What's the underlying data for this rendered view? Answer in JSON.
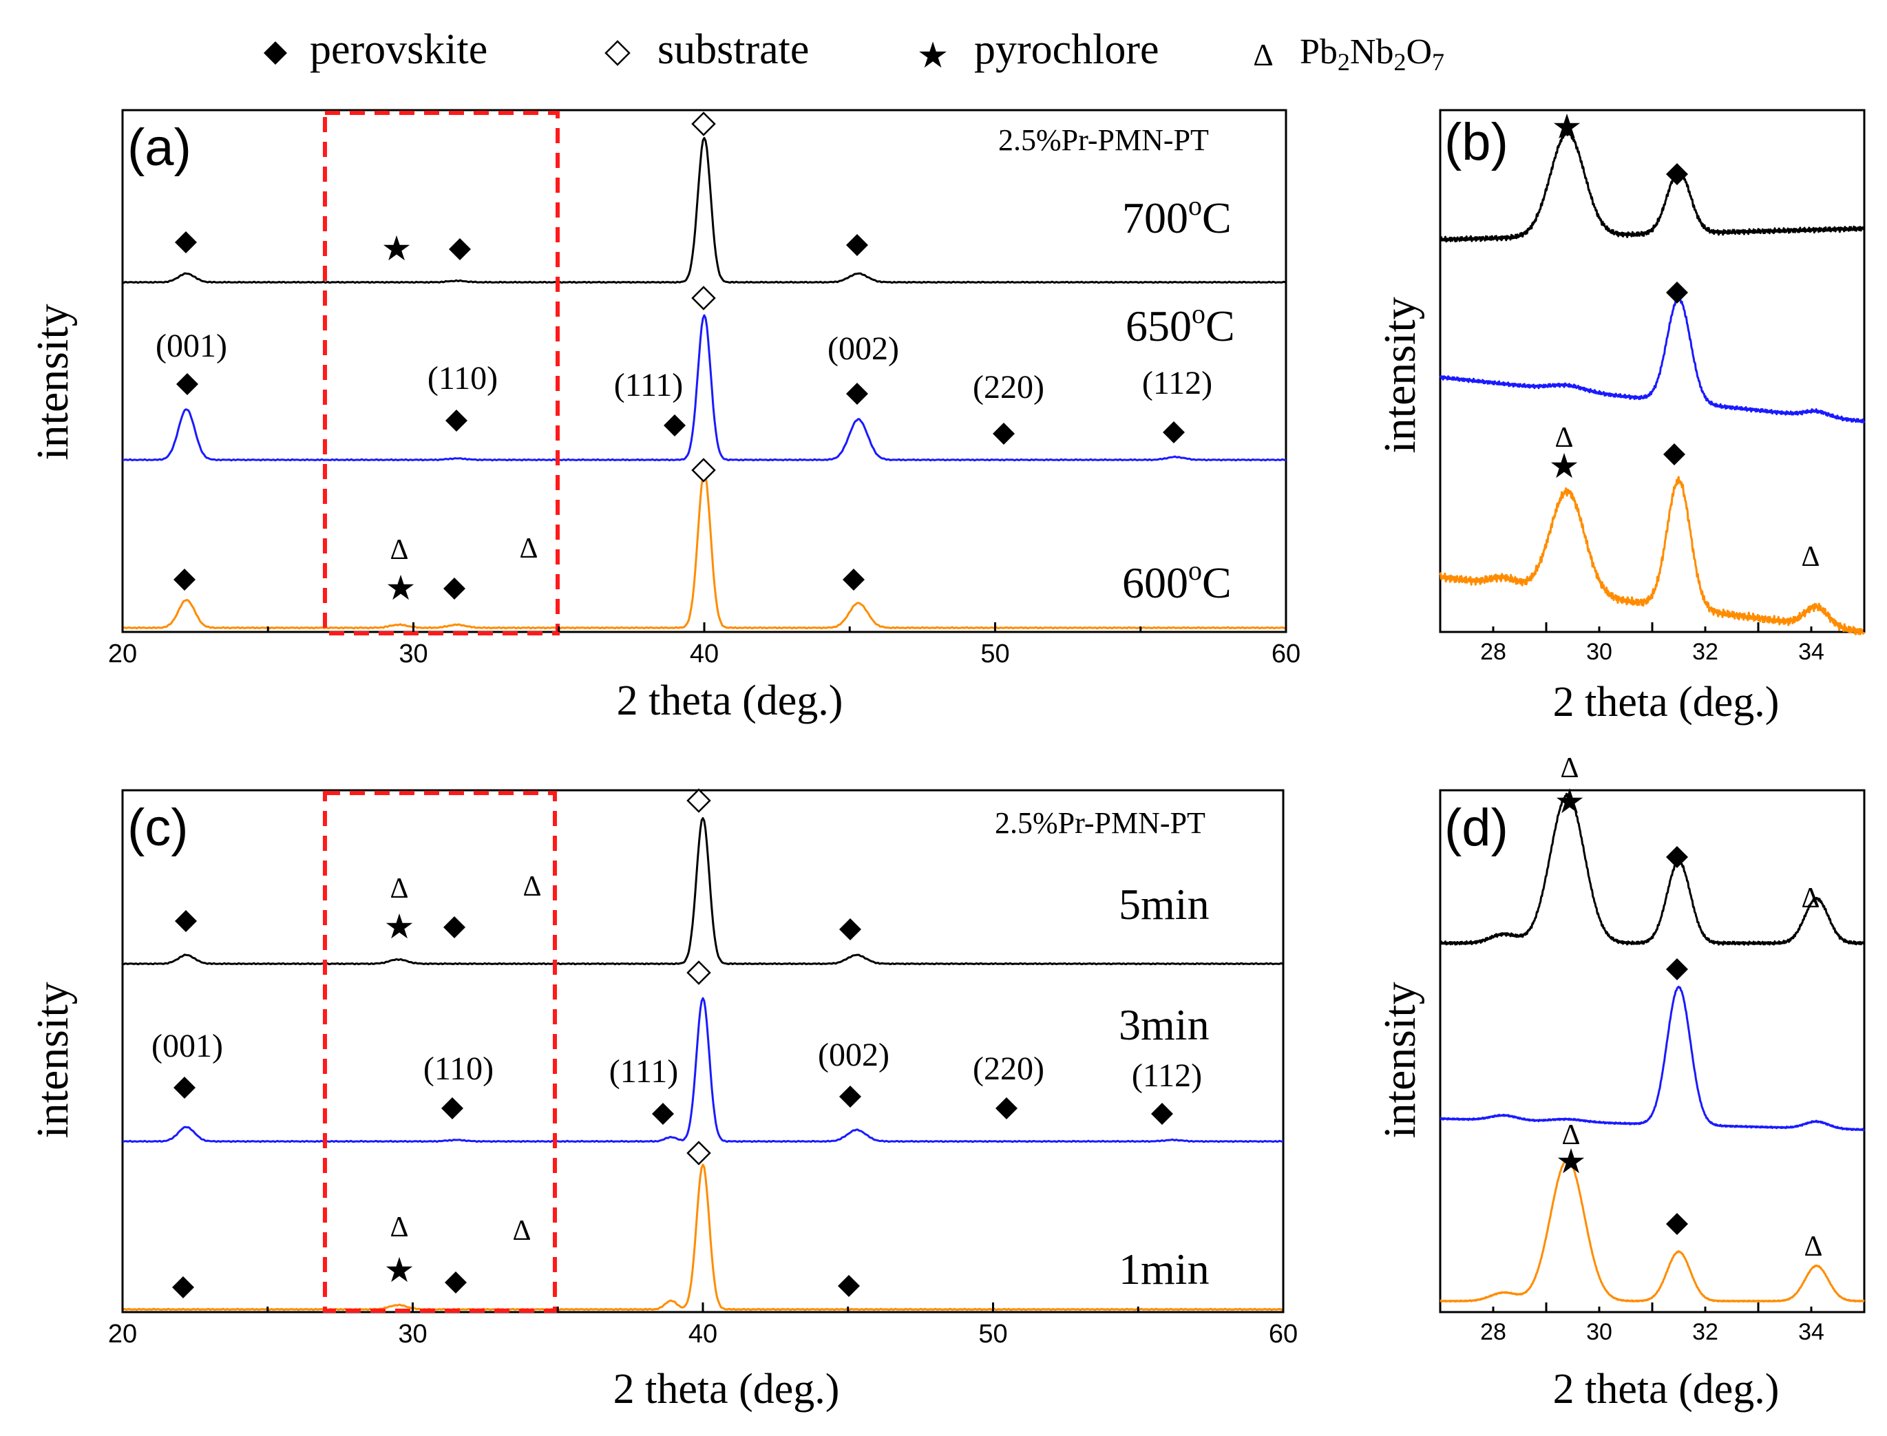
{
  "legend": [
    {
      "symbol": "diamond-filled",
      "label": "perovskite"
    },
    {
      "symbol": "diamond-open",
      "label": "substrate"
    },
    {
      "symbol": "star",
      "label": "pyrochlore"
    },
    {
      "symbol": "triangle-open",
      "label": "Pb2Nb2O7"
    }
  ],
  "colors": {
    "series_top": "#000000",
    "series_mid": "#1a1aff",
    "series_bottom": "#ff8c00",
    "box": "#ff1a1a"
  },
  "chart_data": [
    {
      "id": "a",
      "type": "line",
      "panel_label": "(a)",
      "sample": "2.5%Pr-PMN-PT",
      "xlabel": "2 theta (deg.)",
      "ylabel": "intensity",
      "xlim": [
        20,
        60
      ],
      "xticks": [
        "20",
        "30",
        "40",
        "50",
        "60"
      ],
      "highlight_box_x": [
        27,
        35
      ],
      "peaks": {
        "perovskite": [
          22.2,
          31.5,
          45.3,
          50.5,
          56.2
        ],
        "substrate": 40.0,
        "si111": 38.9
      },
      "hkl": [
        "(001)",
        "(110)",
        "(111)",
        "(002)",
        "(220)",
        "(112)"
      ],
      "series": [
        {
          "name": "700°C",
          "temp": "700",
          "unit": "oC",
          "peak_heights": {
            "001": 0.06,
            "110": 0.01,
            "sub": 1.0,
            "002": 0.06
          }
        },
        {
          "name": "650°C",
          "temp": "650",
          "unit": "oC",
          "peak_heights": {
            "001": 0.35,
            "110": 0.01,
            "111": 0.0,
            "sub": 1.0,
            "002": 0.28,
            "112": 0.02
          }
        },
        {
          "name": "600°C",
          "temp": "600",
          "unit": "oC",
          "peak_heights": {
            "001": 0.18,
            "pyro": 0.02,
            "110": 0.02,
            "sub": 1.0,
            "002": 0.16
          }
        }
      ]
    },
    {
      "id": "b",
      "type": "line",
      "panel_label": "(b)",
      "xlabel": "2 theta (deg.)",
      "ylabel": "intensity",
      "xlim": [
        27,
        35
      ],
      "xticks": [
        "28",
        "30",
        "32",
        "34"
      ],
      "series": [
        {
          "name": "700°C",
          "pyrochlore_29_4": 0.75,
          "perovskite_31_5": 0.45
        },
        {
          "name": "650°C",
          "pyrochlore_29_4": 0.05,
          "perovskite_31_5": 1.0,
          "pb2nb2o7_34_0": 0.05
        },
        {
          "name": "600°C",
          "pyrochlore_29_4": 0.8,
          "perovskite_31_5": 1.0,
          "pb2nb2o7_34_0": 0.15
        }
      ]
    },
    {
      "id": "c",
      "type": "line",
      "panel_label": "(c)",
      "sample": "2.5%Pr-PMN-PT",
      "xlabel": "2 theta (deg.)",
      "ylabel": "intensity",
      "xlim": [
        20,
        60
      ],
      "xticks": [
        "20",
        "30",
        "40",
        "50",
        "60"
      ],
      "highlight_box_x": [
        27,
        35
      ],
      "hkl": [
        "(001)",
        "(110)",
        "(111)",
        "(002)",
        "(220)",
        "(112)"
      ],
      "series": [
        {
          "name": "5min",
          "peak_heights": {
            "001": 0.06,
            "pyro": 0.03,
            "sub": 1.0,
            "002": 0.06
          }
        },
        {
          "name": "3min",
          "peak_heights": {
            "001": 0.1,
            "110": 0.01,
            "111": 0.03,
            "sub": 1.0,
            "002": 0.08,
            "112": 0.01
          }
        },
        {
          "name": "1min",
          "peak_heights": {
            "pyro": 0.03,
            "111": 0.06,
            "sub": 1.0
          }
        }
      ]
    },
    {
      "id": "d",
      "type": "line",
      "panel_label": "(d)",
      "xlabel": "2 theta (deg.)",
      "ylabel": "intensity",
      "xlim": [
        27,
        35
      ],
      "xticks": [
        "28",
        "30",
        "32",
        "34"
      ],
      "series": [
        {
          "name": "5min",
          "pyrochlore_29_4": 1.0,
          "perovskite_31_5": 0.55,
          "pb2nb2o7_34_1": 0.3
        },
        {
          "name": "3min",
          "pyrochlore_29_4": 0.02,
          "perovskite_31_5": 1.0,
          "pb2nb2o7_34_1": 0.05
        },
        {
          "name": "1min",
          "pyrochlore_29_4": 1.0,
          "perovskite_31_5": 0.35,
          "pb2nb2o7_34_1": 0.25
        }
      ]
    }
  ]
}
